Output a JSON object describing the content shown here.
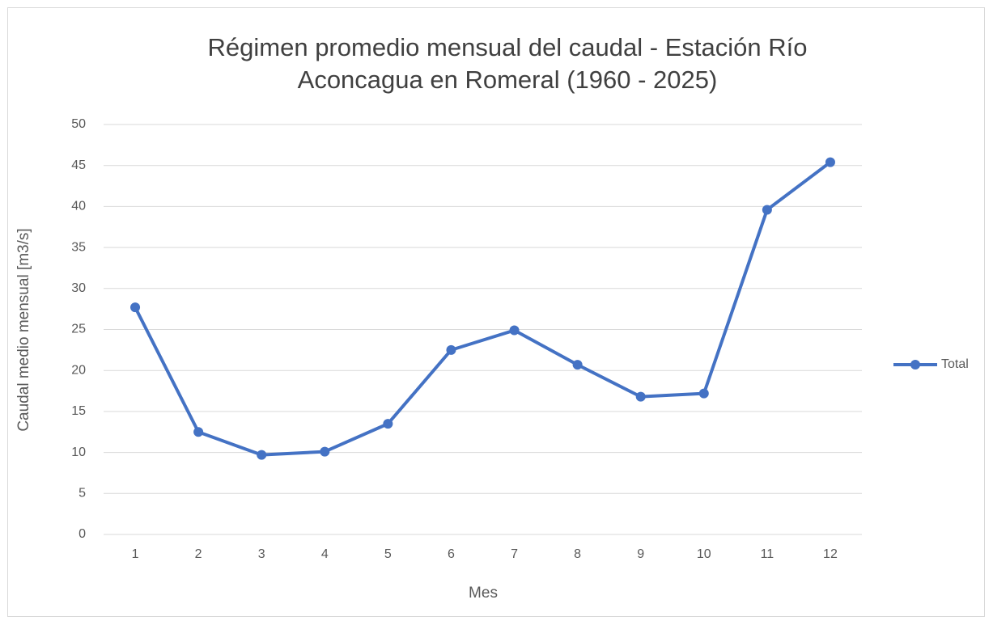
{
  "chart_data": {
    "type": "line",
    "title": [
      "Régimen promedio mensual del caudal - Estación Río",
      "Aconcagua en Romeral (1960 - 2025)"
    ],
    "x_label": "Mes",
    "y_label": "Caudal medio mensual [m3/s]",
    "categories": [
      "1",
      "2",
      "3",
      "4",
      "5",
      "6",
      "7",
      "8",
      "9",
      "10",
      "11",
      "12"
    ],
    "series": [
      {
        "name": "Total",
        "color": "#4472c4",
        "values": [
          27.7,
          12.5,
          9.7,
          10.1,
          13.5,
          22.5,
          24.9,
          20.7,
          16.8,
          17.2,
          39.6,
          45.4
        ]
      }
    ],
    "ylim": [
      0,
      50
    ],
    "yticks": [
      0,
      5,
      10,
      15,
      20,
      25,
      30,
      35,
      40,
      45,
      50
    ],
    "grid": true,
    "legend": "right"
  }
}
